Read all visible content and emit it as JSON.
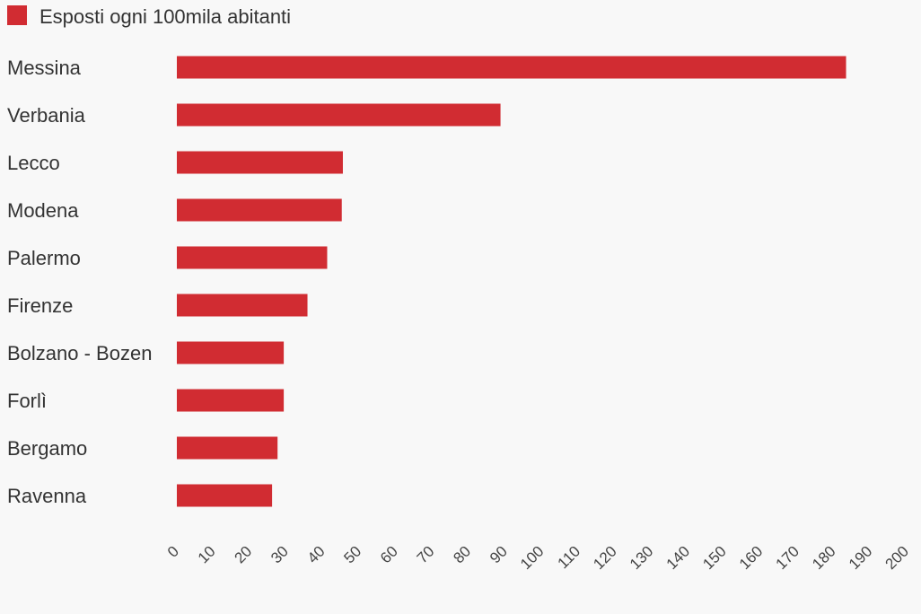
{
  "chart_data": {
    "type": "bar",
    "orientation": "horizontal",
    "legend": {
      "placement": "top-left",
      "entries": [
        "Esposti ogni 100mila abitanti"
      ]
    },
    "categories": [
      "Messina",
      "Verbania",
      "Lecco",
      "Modena",
      "Palermo",
      "Firenze",
      "Bolzano - Bozen",
      "Forlì",
      "Bergamo",
      "Ravenna"
    ],
    "series": [
      {
        "name": "Esposti ogni 100mila abitanti",
        "color": "#d12c32",
        "values": [
          183.4,
          88.7,
          45.5,
          45.2,
          41.2,
          35.8,
          29.3,
          29.3,
          27.6,
          26.1
        ]
      }
    ],
    "xlim": [
      0,
      200
    ],
    "xticks": [
      "0",
      "10",
      "20",
      "30",
      "40",
      "50",
      "60",
      "70",
      "80",
      "90",
      "100",
      "110",
      "120",
      "130",
      "140",
      "150",
      "160",
      "170",
      "180",
      "190",
      "200"
    ],
    "grid": false
  }
}
